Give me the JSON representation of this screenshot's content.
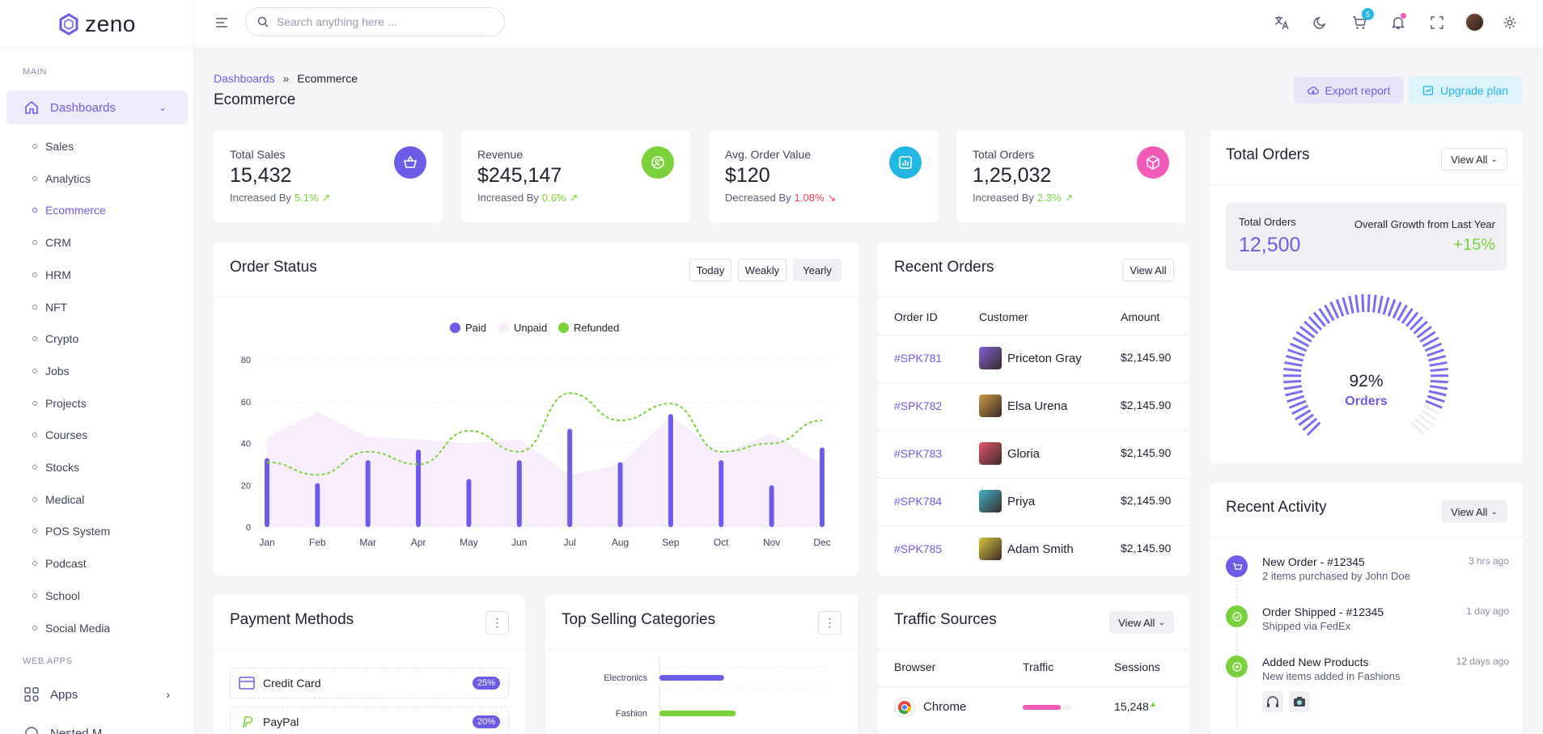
{
  "brand": {
    "name": "zeno"
  },
  "sidebar": {
    "section_main": "MAIN",
    "active_group": "Dashboards",
    "items": [
      "Sales",
      "Analytics",
      "Ecommerce",
      "CRM",
      "HRM",
      "NFT",
      "Crypto",
      "Jobs",
      "Projects",
      "Courses",
      "Stocks",
      "Medical",
      "POS System",
      "Podcast",
      "School",
      "Social Media"
    ],
    "active_item": "Ecommerce",
    "section_webapps": "WEB APPS",
    "apps_label": "Apps",
    "partial_label": "Nested M"
  },
  "topbar": {
    "search_placeholder": "Search anything here ...",
    "cart_count": "5"
  },
  "breadcrumb": {
    "parent": "Dashboards",
    "separator": "»",
    "current": "Ecommerce"
  },
  "page_title": "Ecommerce",
  "actions": {
    "export": "Export report",
    "upgrade": "Upgrade plan"
  },
  "stats": [
    {
      "label": "Total Sales",
      "value": "15,432",
      "trend_text": "Increased By",
      "pct": "5.1%",
      "dir": "up",
      "color": "#6c5ce7",
      "icon": "basket-icon"
    },
    {
      "label": "Revenue",
      "value": "$245,147",
      "trend_text": "Increased By",
      "pct": "0.6%",
      "dir": "up",
      "color": "#7ad23b",
      "icon": "user-plus-icon"
    },
    {
      "label": "Avg. Order Value",
      "value": "$120",
      "trend_text": "Decreased By",
      "pct": "1.08%",
      "dir": "down",
      "color": "#23b7e5",
      "icon": "bar-chart-icon"
    },
    {
      "label": "Total Orders",
      "value": "1,25,032",
      "trend_text": "Increased By",
      "pct": "2.3%",
      "dir": "up",
      "color": "#f45bb8",
      "icon": "box-icon"
    }
  ],
  "order_status": {
    "title": "Order Status",
    "filters": [
      "Today",
      "Weakly",
      "Yearly"
    ],
    "selected_filter": "Yearly",
    "legend": [
      "Paid",
      "Unpaid",
      "Refunded"
    ],
    "colors": {
      "paid": "#6c5ce7",
      "unpaid": "#f8eefb",
      "refunded": "#7ad23b"
    }
  },
  "chart_data": {
    "type": "bar",
    "categories": [
      "Jan",
      "Feb",
      "Mar",
      "Apr",
      "May",
      "Jun",
      "Jul",
      "Aug",
      "Sep",
      "Oct",
      "Nov",
      "Dec"
    ],
    "series": [
      {
        "name": "Paid",
        "type": "bar",
        "values": [
          33,
          21,
          32,
          37,
          23,
          32,
          47,
          31,
          54,
          32,
          20,
          38
        ]
      },
      {
        "name": "Unpaid",
        "type": "area",
        "values": [
          43,
          55,
          43,
          42,
          40,
          42,
          25,
          30,
          53,
          35,
          45,
          30
        ]
      },
      {
        "name": "Refunded",
        "type": "line",
        "values": [
          31,
          25,
          36,
          30,
          46,
          36,
          64,
          51,
          59,
          36,
          40,
          51
        ]
      }
    ],
    "y_ticks": [
      0,
      20,
      40,
      60,
      80
    ],
    "ylim": [
      0,
      80
    ],
    "grid": true,
    "legend_position": "top-center"
  },
  "recent_orders": {
    "title": "Recent Orders",
    "view_all": "View All",
    "headers": [
      "Order ID",
      "Customer",
      "Amount"
    ],
    "rows": [
      {
        "id": "#SPK781",
        "customer": "Priceton Gray",
        "amount": "$2,145.90",
        "avatar_color": "#7d5fd6"
      },
      {
        "id": "#SPK782",
        "customer": "Elsa Urena",
        "amount": "$2,145.90",
        "avatar_color": "#c89a42"
      },
      {
        "id": "#SPK783",
        "customer": "Gloria",
        "amount": "$2,145.90",
        "avatar_color": "#e3566d"
      },
      {
        "id": "#SPK784",
        "customer": "Priya",
        "amount": "$2,145.90",
        "avatar_color": "#3fb3c9"
      },
      {
        "id": "#SPK785",
        "customer": "Adam Smith",
        "amount": "$2,145.90",
        "avatar_color": "#d6c43b"
      }
    ]
  },
  "total_orders": {
    "title": "Total Orders",
    "view_all": "View All",
    "label": "Total Orders",
    "value": "12,500",
    "growth_label": "Overall Growth from Last Year",
    "growth_value": "+15%",
    "gauge_percent": "92%",
    "gauge_label": "Orders",
    "gauge_fraction": 0.92
  },
  "recent_activity": {
    "title": "Recent Activity",
    "view_all": "View All",
    "items": [
      {
        "title": "New Order - #12345",
        "sub": "2 items purchased by John Doe",
        "time": "3 hrs ago",
        "color": "#6c5ce7",
        "icon": "cart-icon"
      },
      {
        "title": "Order Shipped - #12345",
        "sub": "Shipped via FedEx",
        "time": "1 day ago",
        "color": "#7ad23b",
        "icon": "check-icon"
      },
      {
        "title": "Added New Products",
        "sub": "New items added in Fashions",
        "time": "12 days ago",
        "color": "#7ad23b",
        "icon": "plus-icon"
      }
    ]
  },
  "payment_methods": {
    "title": "Payment Methods",
    "items": [
      {
        "label": "Credit Card",
        "pct": "25%",
        "icon": "credit-card-icon",
        "color": "#6c5ce7"
      },
      {
        "label": "PayPal",
        "pct": "20%",
        "icon": "paypal-icon",
        "color": "#7ad23b"
      }
    ]
  },
  "top_selling": {
    "title": "Top Selling Categories",
    "categories": [
      "Electronics",
      "Fashion"
    ],
    "values": [
      0.38,
      0.45
    ],
    "colors": [
      "#6c5ce7",
      "#7ad23b"
    ]
  },
  "traffic_sources": {
    "title": "Traffic Sources",
    "view_all": "View All",
    "headers": [
      "Browser",
      "Traffic",
      "Sessions"
    ],
    "rows": [
      {
        "browser": "Chrome",
        "sessions": "15,248",
        "traffic_fraction": 0.78,
        "color": "#f45bb8"
      }
    ]
  }
}
